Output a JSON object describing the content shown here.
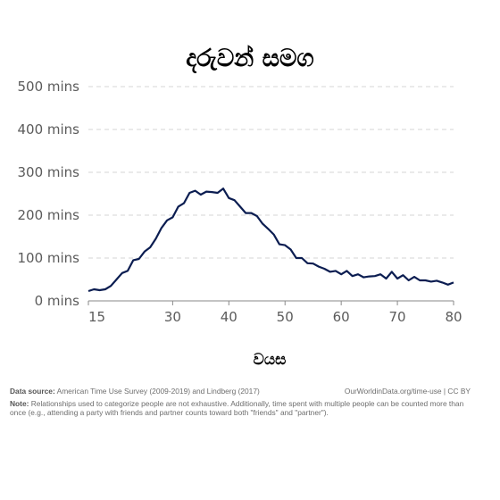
{
  "chart_data": {
    "type": "line",
    "title": "දරුවන් සමග",
    "xlabel": "වයස",
    "ylabel": "",
    "xlim": [
      15,
      80
    ],
    "ylim": [
      0,
      500
    ],
    "x_ticks": [
      "15",
      "30",
      "40",
      "50",
      "60",
      "70",
      "80"
    ],
    "y_ticks": [
      "0 mins",
      "100 mins",
      "200 mins",
      "300 mins",
      "400 mins",
      "500 mins"
    ],
    "grid": true,
    "line_color": "#0b1d51",
    "series": [
      {
        "x": [
          15,
          16,
          17,
          18,
          19,
          20,
          21,
          22,
          23,
          24,
          25,
          26,
          27,
          28,
          29,
          30,
          31,
          32,
          33,
          34,
          35,
          36,
          37,
          38,
          39,
          40,
          41,
          42,
          43,
          44,
          45,
          46,
          47,
          48,
          49,
          50,
          51,
          52,
          53,
          54,
          55,
          56,
          57,
          58,
          59,
          60,
          61,
          62,
          63,
          64,
          65,
          66,
          67,
          68,
          69,
          70,
          71,
          72,
          73,
          74,
          75,
          76,
          77,
          78,
          79,
          80
        ],
        "values": [
          23,
          27,
          25,
          27,
          35,
          50,
          65,
          70,
          95,
          98,
          115,
          125,
          145,
          170,
          188,
          195,
          220,
          228,
          252,
          257,
          248,
          255,
          254,
          252,
          262,
          240,
          235,
          220,
          205,
          205,
          198,
          180,
          168,
          155,
          132,
          130,
          120,
          100,
          100,
          88,
          87,
          80,
          75,
          68,
          70,
          62,
          70,
          58,
          62,
          55,
          57,
          58,
          62,
          52,
          68,
          52,
          60,
          48,
          56,
          48,
          48,
          45,
          47,
          43,
          38,
          43
        ]
      }
    ]
  },
  "footer": {
    "source_label": "Data source:",
    "source_text": "American Time Use Survey (2009-2019) and Lindberg (2017)",
    "credit": "OurWorldinData.org/time-use | CC BY",
    "note_label": "Note:",
    "note_text": "Relationships used to categorize people are not exhaustive. Additionally, time spent with multiple people can be counted more than once (e.g., attending a party with friends and partner counts toward both \"friends\" and \"partner\")."
  }
}
